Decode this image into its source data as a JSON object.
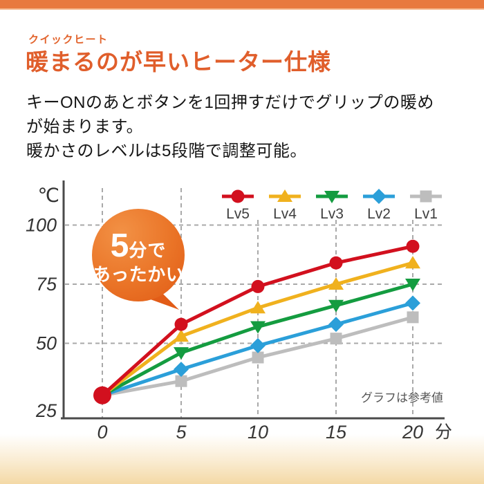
{
  "header": {
    "eyebrow": "クイックヒート",
    "title": "暖まるのが早いヒーター仕様"
  },
  "intro": {
    "line1": "キーONのあとボタンを1回押すだけでグリップの暖め",
    "line2": "が始まります。",
    "line3": "暖かさのレベルは5段階で調整可能。"
  },
  "callout": {
    "big": "5",
    "rest": "分で",
    "line2": "あったかい"
  },
  "chart": {
    "y_unit": "℃",
    "x_unit": "分",
    "note": "グラフは参考値",
    "y_ticks": [
      100,
      75,
      50,
      25
    ]
  },
  "theme": {
    "accent_orange": "#E2632C",
    "top_bar_orange": "#E8793F",
    "bubble_orange": "#EA7427",
    "bottom_band": "#F4D9A6",
    "axis_gray": "#4A4A4A",
    "grid_gray": "#A9A9A9"
  },
  "chart_data": {
    "type": "line",
    "title": "",
    "x": [
      0,
      5,
      10,
      15,
      20
    ],
    "xlabel": "分",
    "ylabel": "℃",
    "ylim": [
      25,
      100
    ],
    "grid": true,
    "legend_position": "top-right",
    "note": "グラフは参考値",
    "series": [
      {
        "name": "Lv5",
        "color": "#D2101E",
        "marker": "circle",
        "values": [
          28,
          58,
          74,
          84,
          91
        ]
      },
      {
        "name": "Lv4",
        "color": "#F0B11E",
        "marker": "triangle-up",
        "values": [
          28,
          53,
          65,
          75,
          84
        ]
      },
      {
        "name": "Lv3",
        "color": "#149C40",
        "marker": "triangle-down",
        "values": [
          28,
          46,
          57,
          66,
          75
        ]
      },
      {
        "name": "Lv2",
        "color": "#2B9FD9",
        "marker": "diamond",
        "values": [
          28,
          39,
          49,
          58,
          67
        ]
      },
      {
        "name": "Lv1",
        "color": "#BDBDBD",
        "marker": "square",
        "values": [
          28,
          34,
          44,
          52,
          61
        ]
      }
    ]
  }
}
